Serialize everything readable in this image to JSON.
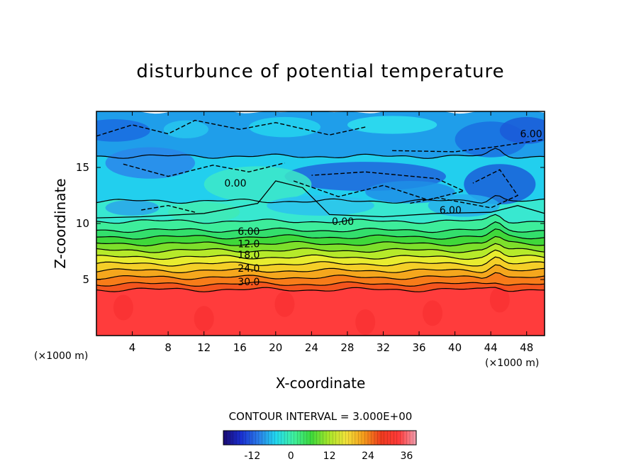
{
  "chart_data": {
    "type": "heatmap",
    "title": "disturbunce of potential temperature",
    "xlabel": "X-coordinate",
    "ylabel": "Z-coordinate",
    "x_unit": "(×1000 m)",
    "z_unit": "(×1000 m)",
    "xlim": [
      0,
      50
    ],
    "ylim": [
      0,
      20
    ],
    "x_ticks": [
      "4",
      "8",
      "12",
      "16",
      "20",
      "24",
      "28",
      "32",
      "36",
      "40",
      "44",
      "48"
    ],
    "y_ticks": [
      "5",
      "10",
      "15"
    ],
    "contour_labels": [
      "6.00",
      "0.00",
      "6.00",
      "0.00",
      "6.00",
      "12.0",
      "18.0",
      "24.0",
      "30.0"
    ],
    "contour_interval_text": "CONTOUR INTERVAL = 3.000E+00",
    "colorbar": {
      "ticks": [
        "-12",
        "0",
        "12",
        "24",
        "36"
      ],
      "range": [
        -21,
        39
      ],
      "colors": [
        "#1a0a70",
        "#1a2fd0",
        "#2a7be8",
        "#22d8ef",
        "#3ff0a0",
        "#3cd93c",
        "#a6e62a",
        "#f2e23a",
        "#f59c1b",
        "#ef3b1e",
        "#ff3a3a",
        "#f1a0b0"
      ]
    },
    "bands": [
      {
        "z": [
          0,
          4.1
        ],
        "value": 36,
        "color": "#ff3c3c"
      },
      {
        "z": [
          4.1,
          4.6
        ],
        "value": 33,
        "color": "#f4551e"
      },
      {
        "z": [
          4.6,
          5.2
        ],
        "value": 30,
        "color": "#f77c19"
      },
      {
        "z": [
          5.2,
          5.8
        ],
        "value": 27,
        "color": "#f5a71d"
      },
      {
        "z": [
          5.8,
          6.4
        ],
        "value": 24,
        "color": "#f4cf28"
      },
      {
        "z": [
          6.4,
          7.0
        ],
        "value": 21,
        "color": "#e8ec2f"
      },
      {
        "z": [
          7.0,
          7.6
        ],
        "value": 18,
        "color": "#b6ea2a"
      },
      {
        "z": [
          7.6,
          8.2
        ],
        "value": 15,
        "color": "#7ddf2b"
      },
      {
        "z": [
          8.2,
          8.8
        ],
        "value": 12,
        "color": "#3fd83a"
      },
      {
        "z": [
          8.8,
          9.4
        ],
        "value": 9,
        "color": "#33df6c"
      },
      {
        "z": [
          9.4,
          10.2
        ],
        "value": 6,
        "color": "#3ded9b"
      },
      {
        "z": [
          10.2,
          12.0
        ],
        "value": 0,
        "color": "#38e8d0"
      },
      {
        "z": [
          12.0,
          16.0
        ],
        "value": -3,
        "color": "#22cfee"
      },
      {
        "z": [
          16.0,
          20.0
        ],
        "value": -6,
        "color": "#1f9eea"
      }
    ]
  }
}
